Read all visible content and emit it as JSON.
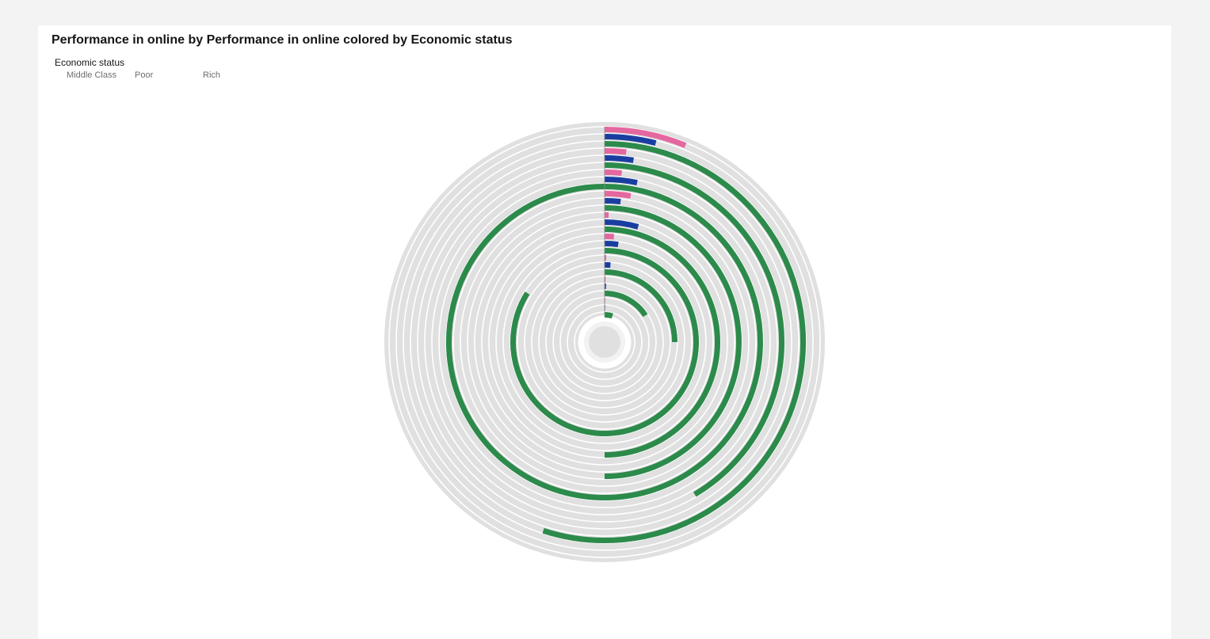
{
  "title": "Performance in online by Performance in online colored by Economic status",
  "legend": {
    "title": "Economic status",
    "items": [
      {
        "label": "Middle Class",
        "color": "#e5679f"
      },
      {
        "label": "Poor",
        "color": "#1a3ea0"
      },
      {
        "label": "Rich",
        "color": "#2c8a4b"
      }
    ]
  },
  "chart_data": {
    "type": "radial bar",
    "title": "Performance in online by Performance in online colored by Economic status",
    "legend_title": "Economic status",
    "legend_placement": "top-left",
    "colors": {
      "Middle Class": "#e5679f",
      "Poor": "#1a3ea0",
      "Rich": "#2c8a4b",
      "track": "#e0e0e0"
    },
    "bars": [
      {
        "series": "Middle Class",
        "value": 0.062
      },
      {
        "series": "Poor",
        "value": 0.04
      },
      {
        "series": "Rich",
        "value": 0.55
      },
      {
        "series": "Middle Class",
        "value": 0.018
      },
      {
        "series": "Poor",
        "value": 0.025
      },
      {
        "series": "Rich",
        "value": 0.415
      },
      {
        "series": "Middle Class",
        "value": 0.016
      },
      {
        "series": "Poor",
        "value": 0.032
      },
      {
        "series": "Rich",
        "value": 1.0
      },
      {
        "series": "Middle Class",
        "value": 0.028
      },
      {
        "series": "Poor",
        "value": 0.018
      },
      {
        "series": "Rich",
        "value": 0.5
      },
      {
        "series": "Middle Class",
        "value": 0.005
      },
      {
        "series": "Poor",
        "value": 0.045
      },
      {
        "series": "Rich",
        "value": 0.5
      },
      {
        "series": "Middle Class",
        "value": 0.014
      },
      {
        "series": "Poor",
        "value": 0.022
      },
      {
        "series": "Rich",
        "value": 0.84
      },
      {
        "series": "Middle Class",
        "value": 0.003
      },
      {
        "series": "Poor",
        "value": 0.012
      },
      {
        "series": "Rich",
        "value": 0.25
      },
      {
        "series": "Middle Class",
        "value": 0.001
      },
      {
        "series": "Poor",
        "value": 0.004
      },
      {
        "series": "Rich",
        "value": 0.158
      },
      {
        "series": "Middle Class",
        "value": 0.002
      },
      {
        "series": "Poor",
        "value": 0.001
      },
      {
        "series": "Rich",
        "value": 0.046
      }
    ]
  }
}
